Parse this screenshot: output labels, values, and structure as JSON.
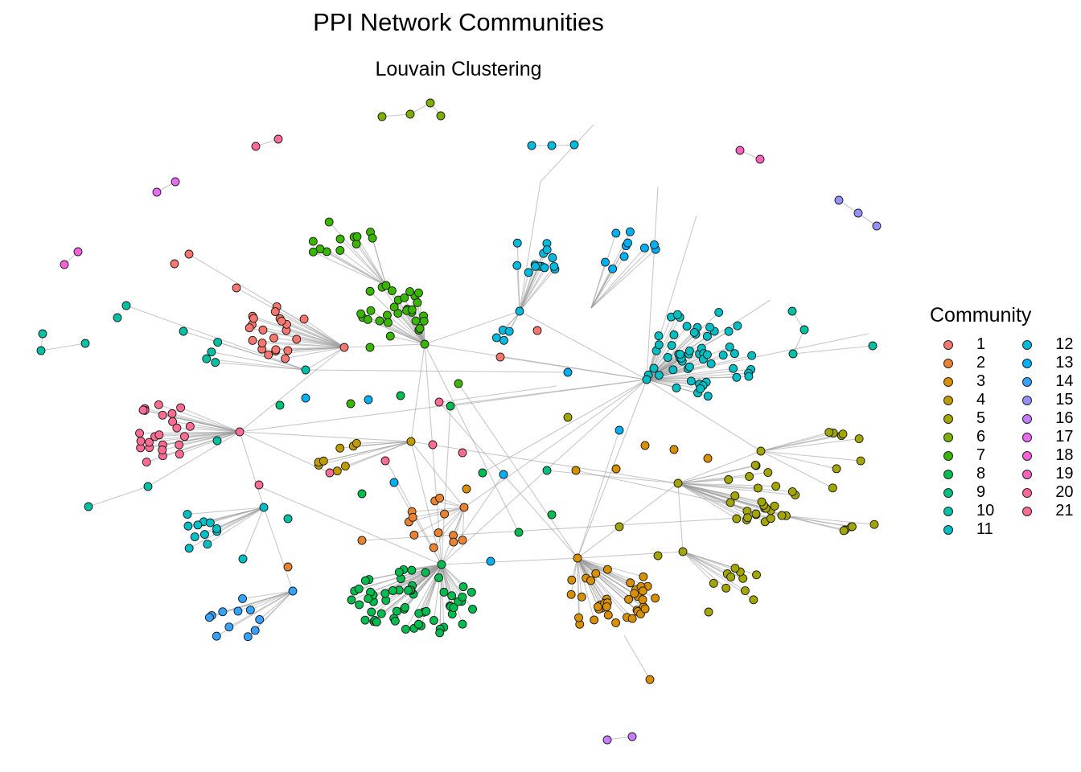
{
  "title": "PPI Network Communities",
  "subtitle": "Louvain Clustering",
  "legend": {
    "title": "Community",
    "items": [
      {
        "label": "1",
        "color": "#F8766D"
      },
      {
        "label": "2",
        "color": "#EA8331"
      },
      {
        "label": "3",
        "color": "#D89000"
      },
      {
        "label": "4",
        "color": "#C09B00"
      },
      {
        "label": "5",
        "color": "#A3A500"
      },
      {
        "label": "6",
        "color": "#7CAE00"
      },
      {
        "label": "7",
        "color": "#39B600"
      },
      {
        "label": "8",
        "color": "#00BB4E"
      },
      {
        "label": "9",
        "color": "#00BF7D"
      },
      {
        "label": "10",
        "color": "#00C1A3"
      },
      {
        "label": "11",
        "color": "#00BFC4"
      },
      {
        "label": "12",
        "color": "#00BAE0"
      },
      {
        "label": "13",
        "color": "#00B0F6"
      },
      {
        "label": "14",
        "color": "#35A2FF"
      },
      {
        "label": "15",
        "color": "#9590FF"
      },
      {
        "label": "16",
        "color": "#C77CFF"
      },
      {
        "label": "17",
        "color": "#E76BF3"
      },
      {
        "label": "18",
        "color": "#FA62DB"
      },
      {
        "label": "19",
        "color": "#FF62BC"
      },
      {
        "label": "20",
        "color": "#FF6A98"
      },
      {
        "label": "21",
        "color": "#FF6C91"
      }
    ]
  }
}
